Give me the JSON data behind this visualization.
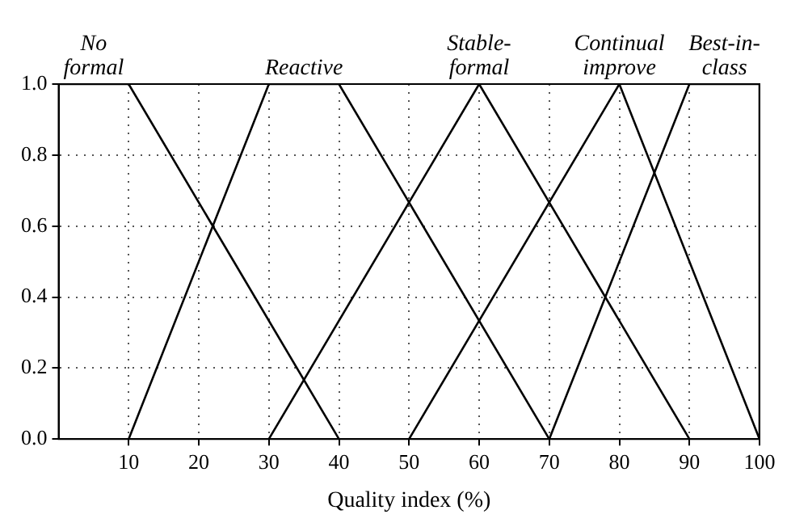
{
  "chart_data": {
    "type": "line",
    "xlabel": "Quality index (%)",
    "xlim": [
      0,
      100
    ],
    "xticks": [
      10,
      20,
      30,
      40,
      50,
      60,
      70,
      80,
      90,
      100
    ],
    "ylim": [
      0,
      1
    ],
    "yticks": [
      {
        "value": 0,
        "label": "0.0"
      },
      {
        "value": 0.2,
        "label": "0.2"
      },
      {
        "value": 0.4,
        "label": "0.4"
      },
      {
        "value": 0.6,
        "label": "0.6"
      },
      {
        "value": 0.8,
        "label": "0.8"
      },
      {
        "value": 1,
        "label": "1.0"
      }
    ],
    "grid": true,
    "legend": false,
    "marker": "none",
    "line_style": "solid",
    "series": [
      {
        "name": "No formal",
        "color": "#000000",
        "x": [
          0,
          10,
          40
        ],
        "values": [
          1,
          1,
          0
        ]
      },
      {
        "name": "Reactive",
        "color": "#000000",
        "x": [
          10,
          30,
          40,
          70
        ],
        "values": [
          0,
          1,
          1,
          0
        ]
      },
      {
        "name": "Stable-formal",
        "color": "#000000",
        "x": [
          30,
          60,
          90
        ],
        "values": [
          0,
          1,
          0
        ]
      },
      {
        "name": "Continual improve",
        "color": "#000000",
        "x": [
          50,
          80,
          100
        ],
        "values": [
          0,
          1,
          0
        ]
      },
      {
        "name": "Best-in-class",
        "color": "#000000",
        "x": [
          70,
          90,
          100,
          100
        ],
        "values": [
          0,
          1,
          1,
          0
        ]
      }
    ]
  }
}
